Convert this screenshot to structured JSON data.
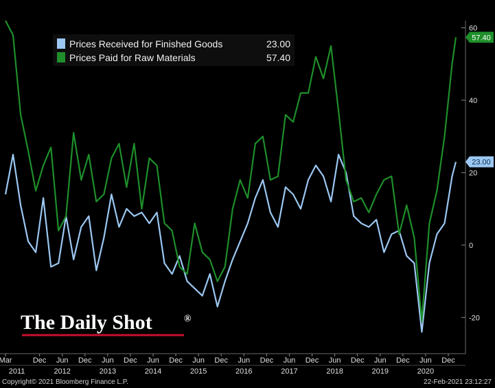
{
  "chart_data": {
    "type": "line",
    "ylim": [
      -30,
      62
    ],
    "yticks": [
      60,
      40,
      20,
      0,
      -20
    ],
    "grid": false,
    "legend_position": "top-left",
    "x_start": "2011-03",
    "x_end": "2021-02",
    "month_ticks": [
      {
        "label": "Mar",
        "date": "2011-03"
      },
      {
        "label": "Dec",
        "date": "2011-12"
      },
      {
        "label": "Jun",
        "date": "2012-06"
      },
      {
        "label": "Dec",
        "date": "2012-12"
      },
      {
        "label": "Jun",
        "date": "2013-06"
      },
      {
        "label": "Dec",
        "date": "2013-12"
      },
      {
        "label": "Jun",
        "date": "2014-06"
      },
      {
        "label": "Dec",
        "date": "2014-12"
      },
      {
        "label": "Jun",
        "date": "2015-06"
      },
      {
        "label": "Dec",
        "date": "2015-12"
      },
      {
        "label": "Jun",
        "date": "2016-06"
      },
      {
        "label": "Dec",
        "date": "2016-12"
      },
      {
        "label": "Jun",
        "date": "2017-06"
      },
      {
        "label": "Dec",
        "date": "2017-12"
      },
      {
        "label": "Jun",
        "date": "2018-06"
      },
      {
        "label": "Dec",
        "date": "2018-12"
      },
      {
        "label": "Jun",
        "date": "2019-06"
      },
      {
        "label": "Dec",
        "date": "2019-12"
      },
      {
        "label": "Jun",
        "date": "2020-06"
      },
      {
        "label": "Dec",
        "date": "2020-12"
      }
    ],
    "year_labels": [
      {
        "label": "2011",
        "date": "2011-06"
      },
      {
        "label": "2012",
        "date": "2012-06"
      },
      {
        "label": "2013",
        "date": "2013-06"
      },
      {
        "label": "2014",
        "date": "2014-06"
      },
      {
        "label": "2015",
        "date": "2015-06"
      },
      {
        "label": "2016",
        "date": "2016-06"
      },
      {
        "label": "2017",
        "date": "2017-06"
      },
      {
        "label": "2018",
        "date": "2018-06"
      },
      {
        "label": "2019",
        "date": "2019-06"
      },
      {
        "label": "2020",
        "date": "2020-06"
      }
    ],
    "series": [
      {
        "name": "Prices Received for Finished Goods",
        "last_value": "23.00",
        "color": "#9cc8f2",
        "x": [
          "2011-03",
          "2011-05",
          "2011-07",
          "2011-09",
          "2011-11",
          "2012-01",
          "2012-03",
          "2012-05",
          "2012-07",
          "2012-09",
          "2012-11",
          "2013-01",
          "2013-03",
          "2013-05",
          "2013-07",
          "2013-09",
          "2013-11",
          "2014-01",
          "2014-03",
          "2014-05",
          "2014-07",
          "2014-09",
          "2014-11",
          "2015-01",
          "2015-03",
          "2015-05",
          "2015-07",
          "2015-09",
          "2015-11",
          "2016-01",
          "2016-03",
          "2016-05",
          "2016-07",
          "2016-09",
          "2016-11",
          "2017-01",
          "2017-03",
          "2017-05",
          "2017-07",
          "2017-09",
          "2017-11",
          "2018-01",
          "2018-03",
          "2018-05",
          "2018-07",
          "2018-09",
          "2018-11",
          "2019-01",
          "2019-03",
          "2019-05",
          "2019-07",
          "2019-09",
          "2019-11",
          "2020-01",
          "2020-03",
          "2020-05",
          "2020-07",
          "2020-09",
          "2020-11",
          "2021-01",
          "2021-02"
        ],
        "values": [
          14,
          25,
          11,
          1,
          -2,
          13,
          -6,
          -5,
          8,
          -4,
          5,
          8,
          -7,
          2,
          14,
          5,
          10,
          8,
          9,
          6,
          9,
          -5,
          -8,
          -3,
          -10,
          -12,
          -14,
          -8,
          -17,
          -10,
          -4,
          1,
          6,
          13,
          18,
          9,
          5,
          16,
          14,
          10,
          18,
          22,
          19,
          12,
          25,
          20,
          8,
          6,
          5,
          7,
          -2,
          3,
          4,
          -3,
          -5,
          -24,
          -5,
          3,
          6,
          19,
          23
        ]
      },
      {
        "name": "Prices Paid for Raw Materials",
        "last_value": "57.40",
        "color": "#1e8f2a",
        "x": [
          "2011-03",
          "2011-05",
          "2011-07",
          "2011-09",
          "2011-11",
          "2012-01",
          "2012-03",
          "2012-05",
          "2012-07",
          "2012-09",
          "2012-11",
          "2013-01",
          "2013-03",
          "2013-05",
          "2013-07",
          "2013-09",
          "2013-11",
          "2014-01",
          "2014-03",
          "2014-05",
          "2014-07",
          "2014-09",
          "2014-11",
          "2015-01",
          "2015-03",
          "2015-05",
          "2015-07",
          "2015-09",
          "2015-11",
          "2016-01",
          "2016-03",
          "2016-05",
          "2016-07",
          "2016-09",
          "2016-11",
          "2017-01",
          "2017-03",
          "2017-05",
          "2017-07",
          "2017-09",
          "2017-11",
          "2018-01",
          "2018-03",
          "2018-05",
          "2018-07",
          "2018-09",
          "2018-11",
          "2019-01",
          "2019-03",
          "2019-05",
          "2019-07",
          "2019-09",
          "2019-11",
          "2020-01",
          "2020-03",
          "2020-05",
          "2020-07",
          "2020-09",
          "2020-11",
          "2021-01",
          "2021-02"
        ],
        "values": [
          62,
          58,
          36,
          26,
          15,
          22,
          27,
          4,
          8,
          31,
          18,
          25,
          12,
          14,
          24,
          28,
          16,
          28,
          10,
          24,
          22,
          6,
          4,
          -6,
          -8,
          6,
          -2,
          -4,
          -10,
          -6,
          10,
          18,
          13,
          28,
          30,
          18,
          19,
          36,
          34,
          42,
          42,
          52,
          46,
          55,
          37,
          18,
          12,
          13,
          9,
          14,
          18,
          19,
          3,
          11,
          2,
          -21,
          6,
          15,
          30,
          50,
          57.4
        ]
      }
    ],
    "footer_left": "Copyright© 2021 Bloomberg Finance L.P.",
    "footer_right": "22-Feb-2021 23:12:27",
    "brand": "The Daily Shot",
    "brand_mark": "®"
  }
}
